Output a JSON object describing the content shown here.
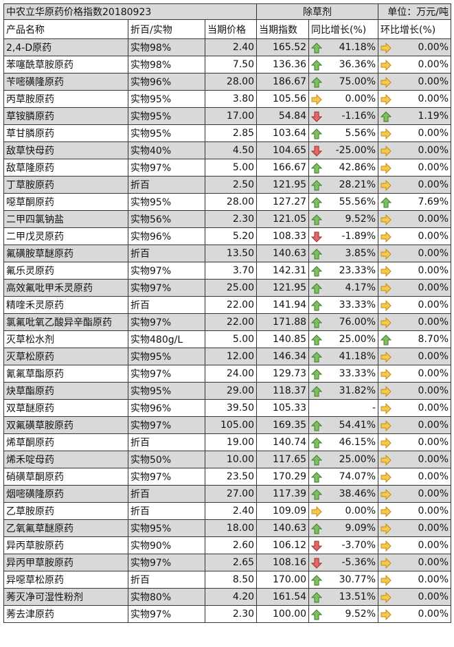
{
  "table": {
    "title": "中农立华原药价格指数20180923",
    "category": "除草剂",
    "unit": "单位：万元/吨",
    "columns": [
      "产品名称",
      "折百/实物",
      "当期价格",
      "当期指数",
      "同比增长(%)",
      "环比增长(%)"
    ],
    "rows": [
      [
        "2,4-D原药",
        "实物98%",
        "2.40",
        "165.52",
        "41.18%",
        "0.00%"
      ],
      [
        "苯噻酰草胺原药",
        "实物98%",
        "7.50",
        "136.36",
        "36.36%",
        "0.00%"
      ],
      [
        "苄嘧磺隆原药",
        "实物96%",
        "28.00",
        "186.67",
        "75.00%",
        "0.00%"
      ],
      [
        "丙草胺原药",
        "实物95%",
        "3.80",
        "105.56",
        "0.00%",
        "0.00%"
      ],
      [
        "草铵膦原药",
        "实物95%",
        "17.00",
        "54.84",
        "-1.16%",
        "1.19%"
      ],
      [
        "草甘膦原药",
        "实物95%",
        "2.85",
        "103.64",
        "5.56%",
        "0.00%"
      ],
      [
        "敌草快母药",
        "实物40%",
        "4.50",
        "104.65",
        "-25.00%",
        "0.00%"
      ],
      [
        "敌草隆原药",
        "实物97%",
        "5.00",
        "166.67",
        "42.86%",
        "0.00%"
      ],
      [
        "丁草胺原药",
        "折百",
        "2.50",
        "121.95",
        "28.21%",
        "0.00%"
      ],
      [
        "噁草酮原药",
        "实物95%",
        "28.00",
        "127.27",
        "55.56%",
        "7.69%"
      ],
      [
        "二甲四氯钠盐",
        "实物56%",
        "2.30",
        "121.05",
        "9.52%",
        "0.00%"
      ],
      [
        "二甲戊灵原药",
        "实物96%",
        "5.20",
        "108.33",
        "-1.89%",
        "0.00%"
      ],
      [
        "氟磺胺草醚原药",
        "折百",
        "13.50",
        "140.63",
        "3.85%",
        "0.00%"
      ],
      [
        "氟乐灵原药",
        "实物97%",
        "3.70",
        "142.31",
        "23.33%",
        "0.00%"
      ],
      [
        "高效氟吡甲禾灵原药",
        "实物97%",
        "25.00",
        "121.95",
        "4.17%",
        "0.00%"
      ],
      [
        "精喹禾灵原药",
        "折百",
        "22.00",
        "141.94",
        "33.33%",
        "0.00%"
      ],
      [
        "氯氟吡氧乙酸异辛酯原药",
        "实物97%",
        "22.00",
        "171.88",
        "76.00%",
        "0.00%"
      ],
      [
        "灭草松水剂",
        "实物480g/L",
        "5.00",
        "140.85",
        "25.00%",
        "8.70%"
      ],
      [
        "灭草松原药",
        "实物95%",
        "12.00",
        "146.34",
        "41.18%",
        "0.00%"
      ],
      [
        "氰氟草酯原药",
        "实物97%",
        "24.00",
        "129.73",
        "33.33%",
        "0.00%"
      ],
      [
        "炔草酯原药",
        "实物95%",
        "29.00",
        "118.37",
        "31.82%",
        "0.00%"
      ],
      [
        "双草醚原药",
        "实物96%",
        "39.50",
        "105.33",
        "-",
        "0.00%"
      ],
      [
        "双氟磺草胺原药",
        "实物97%",
        "105.00",
        "169.35",
        "54.41%",
        "0.00%"
      ],
      [
        "烯草酮原药",
        "折百",
        "19.00",
        "140.74",
        "46.15%",
        "0.00%"
      ],
      [
        "烯禾啶母药",
        "实物50%",
        "10.00",
        "117.65",
        "25.00%",
        "0.00%"
      ],
      [
        "硝磺草酮原药",
        "实物97%",
        "23.50",
        "170.29",
        "74.07%",
        "0.00%"
      ],
      [
        "烟嘧磺隆原药",
        "折百",
        "27.00",
        "117.39",
        "38.46%",
        "0.00%"
      ],
      [
        "乙草胺原药",
        "折百",
        "2.40",
        "109.09",
        "0.00%",
        "0.00%"
      ],
      [
        "乙氧氟草醚原药",
        "实物95%",
        "18.00",
        "140.63",
        "9.09%",
        "0.00%"
      ],
      [
        "异丙草胺原药",
        "实物90%",
        "2.60",
        "106.12",
        "-3.70%",
        "0.00%"
      ],
      [
        "异丙甲草胺原药",
        "实物97%",
        "2.65",
        "108.16",
        "-5.36%",
        "0.00%"
      ],
      [
        "异噁草松原药",
        "折百",
        "8.50",
        "170.00",
        "30.77%",
        "0.00%"
      ],
      [
        "莠灭净可湿性粉剂",
        "实物80%",
        "4.20",
        "161.54",
        "13.51%",
        "0.00%"
      ],
      [
        "莠去津原药",
        "实物97%",
        "2.30",
        "100.00",
        "9.52%",
        "0.00%"
      ]
    ]
  }
}
